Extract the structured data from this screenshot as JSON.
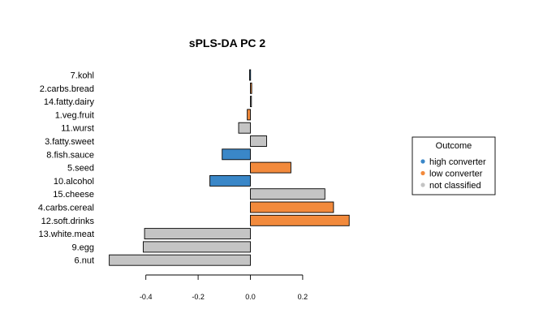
{
  "chart_data": {
    "type": "bar",
    "orientation": "horizontal",
    "title": "sPLS-DA PC 2",
    "xlabel": "",
    "ylabel": "",
    "xlim": [
      -0.54,
      0.38
    ],
    "xticks": [
      -0.4,
      -0.2,
      0.0,
      0.2
    ],
    "xtick_labels": [
      "-0.4",
      "-0.2",
      "0.0",
      "0.2"
    ],
    "grid": false,
    "categories": [
      "7.kohl",
      "2.carbs.bread",
      "14.fatty.dairy",
      "1.veg.fruit",
      "11.wurst",
      "3.fatty.sweet",
      "8.fish.sauce",
      "5.seed",
      "10.alcohol",
      "15.cheese",
      "4.carbs.cereal",
      "12.soft.drinks",
      "13.white.meat",
      "9.egg",
      "6.nut"
    ],
    "values": [
      -0.003,
      0.005,
      0.004,
      -0.012,
      -0.045,
      0.062,
      -0.108,
      0.155,
      -0.155,
      0.285,
      0.318,
      0.378,
      -0.405,
      -0.41,
      -0.54
    ],
    "groups": [
      "high converter",
      "low converter",
      "not classified",
      "low converter",
      "not classified",
      "not classified",
      "high converter",
      "low converter",
      "high converter",
      "not classified",
      "low converter",
      "low converter",
      "not classified",
      "not classified",
      "not classified"
    ],
    "legend": {
      "title": "Outcome",
      "placement": "right",
      "entries": [
        {
          "label": "high converter",
          "color": "#3a87c8"
        },
        {
          "label": "low converter",
          "color": "#f28a3c"
        },
        {
          "label": "not classified",
          "color": "#c4c4c4"
        }
      ]
    }
  }
}
